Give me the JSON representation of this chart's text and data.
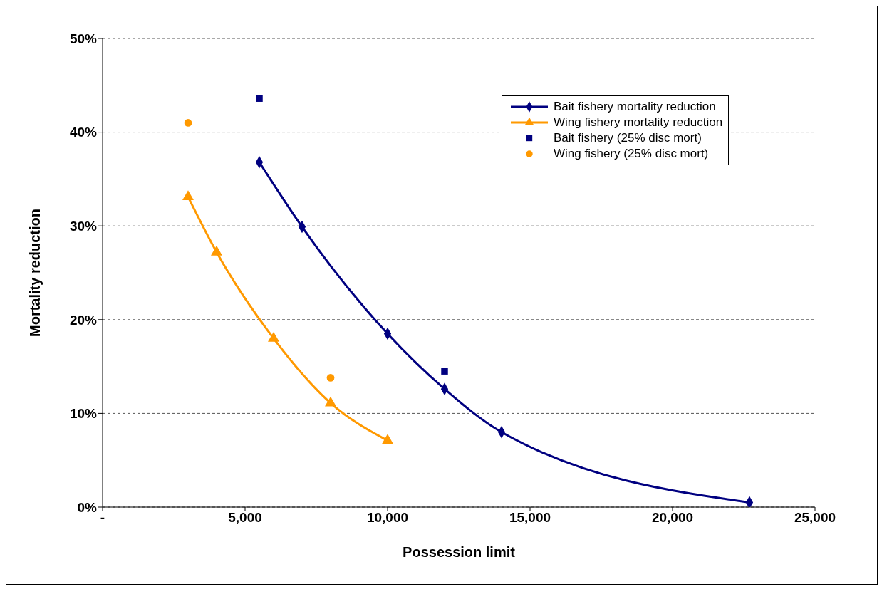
{
  "chart_data": {
    "type": "line",
    "xlabel": "Possession limit",
    "ylabel": "Mortality reduction",
    "xlim": [
      0,
      25000
    ],
    "xticks": [
      {
        "value": 0,
        "label": "-"
      },
      {
        "value": 5000,
        "label": "5,000"
      },
      {
        "value": 10000,
        "label": "10,000"
      },
      {
        "value": 15000,
        "label": "15,000"
      },
      {
        "value": 20000,
        "label": "20,000"
      },
      {
        "value": 25000,
        "label": "25,000"
      }
    ],
    "ylim": [
      0,
      50
    ],
    "yticks": [
      {
        "value": 0,
        "label": "0%"
      },
      {
        "value": 10,
        "label": "10%"
      },
      {
        "value": 20,
        "label": "20%"
      },
      {
        "value": 30,
        "label": "30%"
      },
      {
        "value": 40,
        "label": "40%"
      },
      {
        "value": 50,
        "label": "50%"
      }
    ],
    "grid": "y",
    "legend": "top right",
    "line_style": "solid",
    "series": [
      {
        "name": "Bait fishery mortality reduction",
        "marker": "diamond",
        "color": "#000080",
        "x": [
          5500,
          7000,
          10000,
          12000,
          14000,
          22700
        ],
        "values": [
          36.8,
          29.9,
          18.5,
          12.6,
          8.0,
          0.5
        ]
      },
      {
        "name": "Wing fishery mortality reduction",
        "marker": "triangle",
        "color": "#ff9900",
        "x": [
          3000,
          4000,
          6000,
          8000,
          10000
        ],
        "values": [
          33.1,
          27.2,
          18.0,
          11.1,
          7.1
        ]
      },
      {
        "name": "Bait fishery (25% disc mort)",
        "type": "scatter",
        "marker": "square",
        "color": "#000080",
        "x": [
          5500,
          12000
        ],
        "values": [
          43.6,
          14.5
        ]
      },
      {
        "name": "Wing fishery (25% disc mort)",
        "type": "scatter",
        "marker": "circle",
        "color": "#ff9900",
        "x": [
          3000,
          8000
        ],
        "values": [
          41.0,
          13.8
        ]
      }
    ]
  }
}
